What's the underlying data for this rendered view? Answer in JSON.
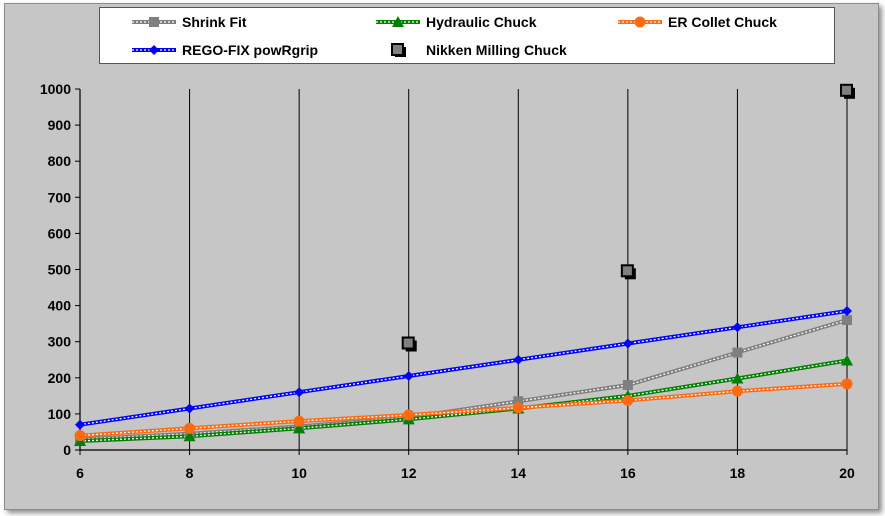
{
  "chart_data": {
    "type": "line",
    "title": "",
    "xlabel": "",
    "ylabel": "",
    "x": [
      6,
      8,
      10,
      12,
      14,
      16,
      18,
      20
    ],
    "xlim": [
      6,
      20
    ],
    "ylim": [
      0,
      1000
    ],
    "xticks": [
      "6",
      "8",
      "10",
      "12",
      "14",
      "16",
      "18",
      "20"
    ],
    "yticks": [
      "0",
      "100",
      "200",
      "300",
      "400",
      "500",
      "600",
      "700",
      "800",
      "900",
      "1000"
    ],
    "grid": "vertical",
    "legend_position": "top",
    "series": [
      {
        "name": "Shrink Fit",
        "color": "#7f7f7f",
        "marker": "square",
        "style": "dotted-line",
        "points": [
          [
            6,
            30
          ],
          [
            8,
            45
          ],
          [
            10,
            65
          ],
          [
            12,
            90
          ],
          [
            14,
            135
          ],
          [
            16,
            180
          ],
          [
            18,
            270
          ],
          [
            20,
            360
          ]
        ]
      },
      {
        "name": "Hydraulic Chuck",
        "color": "#008000",
        "marker": "triangle",
        "style": "dotted-line",
        "points": [
          [
            6,
            25
          ],
          [
            8,
            38
          ],
          [
            10,
            60
          ],
          [
            12,
            85
          ],
          [
            14,
            115
          ],
          [
            16,
            150
          ],
          [
            18,
            198
          ],
          [
            20,
            248
          ]
        ]
      },
      {
        "name": "ER Collet Chuck",
        "color": "#ff6a13",
        "marker": "circle",
        "style": "dotted-line",
        "points": [
          [
            6,
            40
          ],
          [
            8,
            60
          ],
          [
            10,
            80
          ],
          [
            12,
            97
          ],
          [
            14,
            117
          ],
          [
            16,
            137
          ],
          [
            18,
            163
          ],
          [
            20,
            183
          ]
        ]
      },
      {
        "name": "REGO-FIX powRgrip",
        "color": "#0000ff",
        "marker": "diamond",
        "style": "dotted-line",
        "points": [
          [
            6,
            70
          ],
          [
            8,
            115
          ],
          [
            10,
            160
          ],
          [
            12,
            205
          ],
          [
            14,
            250
          ],
          [
            16,
            295
          ],
          [
            18,
            340
          ],
          [
            20,
            385
          ]
        ]
      },
      {
        "name": "Nikken Milling Chuck",
        "color": "#808080",
        "marker": "shadow-square",
        "style": "markers-only",
        "points": [
          [
            12,
            295
          ],
          [
            16,
            495
          ],
          [
            20,
            995
          ]
        ]
      }
    ]
  }
}
